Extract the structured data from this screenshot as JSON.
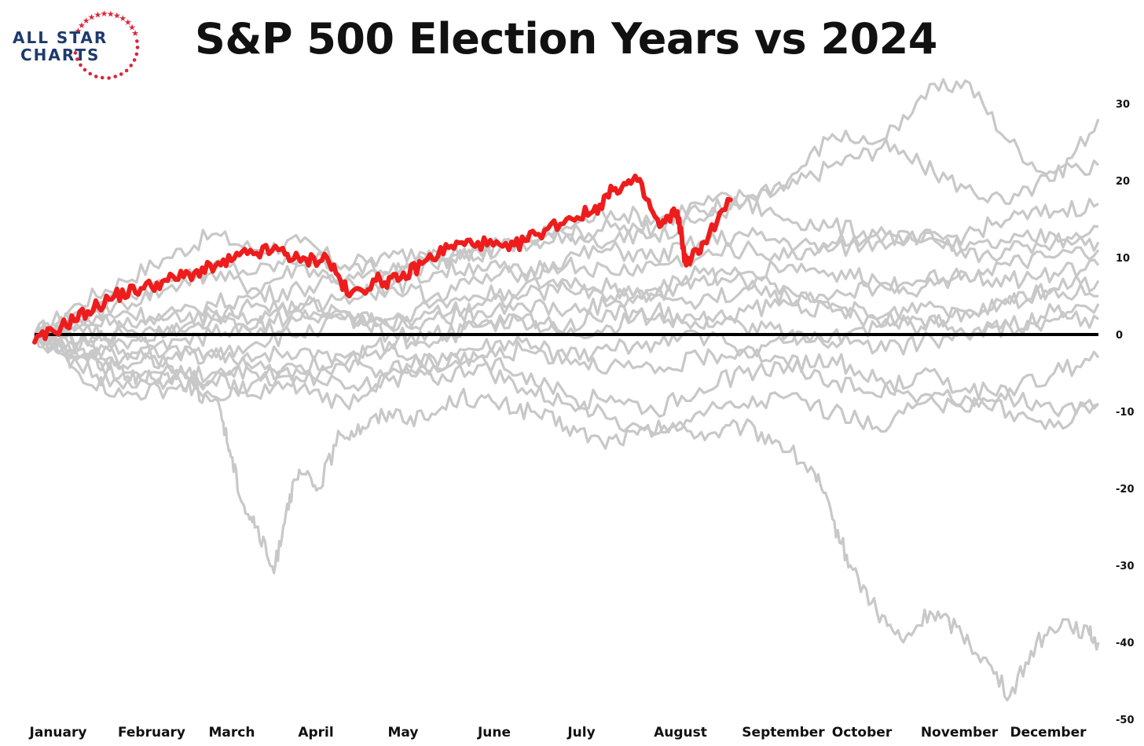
{
  "logo": {
    "line1": "ALL STAR",
    "line2": "CHARTS",
    "star_color": "#d9263a",
    "text_color": "#1e3a6e"
  },
  "chart_data": {
    "type": "line",
    "title": "S&P 500 Election Years vs 2024",
    "xlabel": "",
    "ylabel": "",
    "x_domain": [
      0,
      12
    ],
    "ylim": [
      -50,
      35
    ],
    "yticks": [
      30,
      20,
      10,
      0,
      -10,
      -20,
      -30,
      -40,
      -50
    ],
    "month_labels": [
      "January",
      "February",
      "March",
      "April",
      "May",
      "June",
      "July",
      "August",
      "September",
      "October",
      "November",
      "December"
    ],
    "y_axis_side": "right",
    "grid": false,
    "legend": "none",
    "zero_line_color": "#000000",
    "historical_color": "#c8c8c8",
    "highlight_color": "#ee1c1c",
    "highlight": {
      "name": "2024",
      "x": [
        0.0,
        0.3,
        0.6,
        0.9,
        1.2,
        1.5,
        1.8,
        2.1,
        2.4,
        2.75,
        3.0,
        3.3,
        3.55,
        3.85,
        4.1,
        4.4,
        4.7,
        5.0,
        5.35,
        5.65,
        6.0,
        6.3,
        6.55,
        6.8,
        7.05,
        7.25,
        7.35,
        7.55,
        7.85
      ],
      "values": [
        -1,
        1,
        3,
        5,
        6,
        7,
        8,
        9,
        10.5,
        11,
        9.5,
        10,
        5,
        7,
        7,
        9.5,
        11.5,
        12,
        11,
        13,
        15,
        16,
        19,
        20,
        14,
        16,
        9,
        12,
        17.5
      ]
    },
    "series": [
      {
        "x": [
          0,
          0.5,
          1,
          1.5,
          2,
          2.5,
          3,
          3.5,
          4,
          4.5,
          5,
          5.5,
          6,
          6.5,
          7,
          7.5,
          8,
          8.5,
          9,
          9.5,
          10,
          10.5,
          11,
          11.5,
          12
        ],
        "values": [
          0,
          4,
          7,
          10,
          13,
          11,
          12,
          9,
          8,
          9,
          11,
          12,
          13,
          14,
          13,
          15,
          17,
          19,
          22,
          24,
          31,
          33,
          25,
          20,
          28
        ]
      },
      {
        "x": [
          0,
          0.5,
          1,
          1.5,
          2,
          2.5,
          3,
          3.5,
          4,
          4.5,
          5,
          5.5,
          6,
          6.5,
          7,
          7.5,
          8,
          8.5,
          9,
          9.5,
          10,
          10.5,
          11,
          11.5,
          12
        ],
        "values": [
          0,
          3,
          5,
          7,
          8,
          6,
          9,
          7,
          8,
          10,
          11,
          12,
          14,
          16,
          15,
          17,
          18,
          20,
          26,
          25,
          22,
          19,
          17,
          21,
          22
        ]
      },
      {
        "x": [
          0,
          0.5,
          1,
          1.5,
          2,
          2.5,
          3,
          3.5,
          4,
          4.5,
          5,
          5.5,
          6,
          6.5,
          7,
          7.5,
          8,
          8.5,
          9,
          9.5,
          10,
          10.5,
          11,
          11.5,
          12
        ],
        "values": [
          0,
          2,
          4,
          6,
          9,
          8,
          10,
          9,
          10,
          11,
          10,
          12,
          13,
          12,
          14,
          16,
          17,
          15,
          14,
          13,
          12,
          13,
          15,
          16,
          17
        ]
      },
      {
        "x": [
          0,
          0.5,
          1,
          1.5,
          2,
          2.5,
          3,
          3.5,
          4,
          4.5,
          5,
          5.5,
          6,
          6.5,
          7,
          7.5,
          8,
          8.5,
          9,
          9.5,
          10,
          10.5,
          11,
          11.5,
          12
        ],
        "values": [
          0,
          1,
          3,
          2,
          4,
          5,
          6,
          7,
          6,
          8,
          9,
          8,
          10,
          11,
          10,
          12,
          13,
          12,
          11,
          12,
          13,
          11,
          12,
          13,
          12
        ]
      },
      {
        "x": [
          0,
          0.5,
          1,
          1.5,
          2,
          2.5,
          3,
          3.5,
          4,
          4.5,
          5,
          5.5,
          6,
          6.5,
          7,
          7.5,
          8,
          8.5,
          9,
          9.5,
          10,
          10.5,
          11,
          11.5,
          12
        ],
        "values": [
          0,
          -2,
          1,
          3,
          2,
          4,
          3,
          5,
          6,
          5,
          7,
          8,
          9,
          8,
          9,
          10,
          11,
          10,
          12,
          13,
          12,
          10,
          11,
          12,
          14
        ]
      },
      {
        "x": [
          0,
          0.5,
          1,
          1.5,
          2,
          2.5,
          3,
          3.5,
          4,
          4.5,
          5,
          5.5,
          6,
          6.5,
          7,
          7.5,
          8,
          8.5,
          9,
          9.5,
          10,
          10.5,
          11,
          11.5,
          12
        ],
        "values": [
          0,
          2,
          1,
          0,
          3,
          2,
          4,
          3,
          2,
          4,
          5,
          6,
          7,
          6,
          5,
          7,
          8,
          9,
          8,
          7,
          6,
          8,
          9,
          10,
          11
        ]
      },
      {
        "x": [
          0,
          0.5,
          1,
          1.5,
          2,
          2.5,
          3,
          3.5,
          4,
          4.5,
          5,
          5.5,
          6,
          6.5,
          7,
          7.5,
          8,
          8.5,
          9,
          9.5,
          10,
          10.5,
          11,
          11.5,
          12
        ],
        "values": [
          0,
          -1,
          -3,
          -2,
          0,
          1,
          3,
          2,
          1,
          3,
          4,
          5,
          6,
          5,
          6,
          8,
          7,
          6,
          5,
          6,
          7,
          8,
          7,
          8,
          9
        ]
      },
      {
        "x": [
          0,
          0.5,
          1,
          1.5,
          2,
          2.5,
          3,
          3.5,
          4,
          4.5,
          5,
          5.5,
          6,
          6.5,
          7,
          7.5,
          8,
          8.5,
          9,
          9.5,
          10,
          10.5,
          11,
          11.5,
          12
        ],
        "values": [
          0,
          1,
          -1,
          1,
          2,
          0,
          2,
          3,
          1,
          2,
          3,
          4,
          3,
          4,
          5,
          4,
          6,
          5,
          4,
          2,
          1,
          3,
          4,
          6,
          5
        ]
      },
      {
        "x": [
          0,
          0.5,
          1,
          1.5,
          2,
          2.5,
          3,
          3.5,
          4,
          4.5,
          5,
          5.5,
          6,
          6.5,
          7,
          7.5,
          8,
          8.5,
          9,
          9.5,
          10,
          10.5,
          11,
          11.5,
          12
        ],
        "values": [
          0,
          -3,
          -5,
          -4,
          -6,
          -3,
          -2,
          -4,
          -1,
          0,
          1,
          2,
          0,
          1,
          3,
          2,
          1,
          0,
          -1,
          1,
          2,
          0,
          1,
          3,
          4
        ]
      },
      {
        "x": [
          0,
          0.5,
          1,
          1.5,
          2,
          2.5,
          3,
          3.5,
          4,
          4.5,
          5,
          5.5,
          6,
          6.5,
          7,
          7.5,
          8,
          8.5,
          9,
          9.5,
          10,
          10.5,
          11,
          11.5,
          12
        ],
        "values": [
          0,
          -4,
          -7,
          -6,
          -5,
          -8,
          -6,
          -4,
          -5,
          -3,
          -2,
          -1,
          -3,
          -2,
          -1,
          0,
          -2,
          -1,
          0,
          -2,
          -1,
          0,
          1,
          2,
          2
        ]
      },
      {
        "x": [
          0,
          0.5,
          1,
          1.5,
          2,
          2.5,
          3,
          3.5,
          4,
          4.5,
          5,
          5.5,
          6,
          6.5,
          7,
          7.5,
          8,
          8.5,
          9,
          9.5,
          10,
          10.5,
          11,
          11.5,
          12
        ],
        "values": [
          0,
          -2,
          -4,
          -3,
          -2,
          -5,
          -4,
          -3,
          -2,
          -4,
          -3,
          -2,
          -3,
          -4,
          -5,
          -3,
          -2,
          -4,
          -6,
          -8,
          -5,
          -7,
          -8,
          -10,
          -9
        ]
      },
      {
        "x": [
          0,
          0.5,
          1,
          1.5,
          2,
          2.5,
          3,
          3.5,
          4,
          4.5,
          5,
          5.5,
          6,
          6.5,
          7,
          7.5,
          8,
          8.5,
          9,
          9.5,
          10,
          10.5,
          11,
          11.5,
          12
        ],
        "values": [
          0,
          -5,
          -8,
          -7,
          -6,
          -4,
          -7,
          -9,
          -5,
          -6,
          -4,
          -7,
          -9,
          -8,
          -10,
          -7,
          -5,
          -4,
          -3,
          -6,
          -8,
          -10,
          -7,
          -5,
          -3
        ]
      },
      {
        "x": [
          0,
          0.5,
          1,
          1.5,
          2,
          2.5,
          3,
          3.5,
          4,
          4.5,
          5,
          5.5,
          6,
          6.5,
          7,
          7.5,
          8,
          8.5,
          9,
          9.5,
          10,
          10.5,
          11,
          11.5,
          12
        ],
        "values": [
          0,
          -3,
          -2,
          -4,
          -8,
          -6,
          -5,
          -7,
          -6,
          -4,
          -3,
          -5,
          -8,
          -11,
          -13,
          -10,
          -9,
          -8,
          -10,
          -12,
          -9,
          -8,
          -10,
          -12,
          -9
        ]
      },
      {
        "x": [
          0,
          0.5,
          1,
          1.5,
          2,
          2.5,
          3,
          3.5,
          4,
          4.5,
          5,
          5.5,
          6,
          6.5,
          7,
          7.5,
          8,
          8.5,
          9,
          9.5,
          10,
          10.5,
          11,
          11.5,
          12
        ],
        "values": [
          0,
          -1,
          0,
          -2,
          -3,
          -1,
          0,
          2,
          0,
          -1,
          1,
          2,
          1,
          3,
          2,
          1,
          3,
          4,
          3,
          2,
          4,
          3,
          5,
          6,
          7
        ]
      },
      {
        "x": [
          0,
          0.3,
          0.6,
          0.9,
          1.2,
          1.5,
          1.8,
          2.1,
          2.2,
          2.35,
          2.5,
          2.7,
          2.85,
          3.0,
          3.2,
          3.45,
          3.7,
          4.0,
          4.4,
          4.8,
          5.2,
          5.6,
          6.0,
          6.4,
          6.8,
          7.2,
          7.6,
          8.0,
          8.4,
          8.8,
          9.0,
          9.2,
          9.5,
          9.8,
          10.1,
          10.4,
          10.7,
          11.0,
          11.3,
          11.6,
          11.9,
          12.0
        ],
        "values": [
          0,
          -2,
          -3,
          -4,
          -6,
          -5,
          -7,
          -10,
          -15,
          -22,
          -25,
          -31,
          -22,
          -18,
          -20,
          -13,
          -12,
          -10,
          -11,
          -8,
          -9,
          -10,
          -12,
          -14,
          -13,
          -12,
          -13,
          -12,
          -14,
          -18,
          -24,
          -30,
          -36,
          -40,
          -36,
          -38,
          -42,
          -47,
          -40,
          -37,
          -39,
          -40
        ]
      }
    ]
  }
}
